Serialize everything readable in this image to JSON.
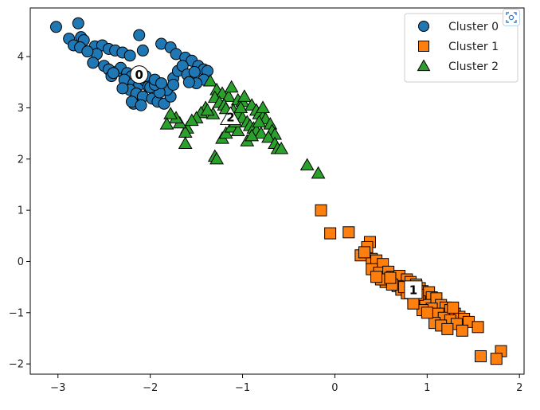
{
  "chart_data": {
    "type": "scatter",
    "xlim": [
      -3.3,
      2.05
    ],
    "ylim": [
      -2.2,
      4.95
    ],
    "xticks": [
      -3,
      -2,
      -1,
      0,
      1,
      2
    ],
    "yticks": [
      -2,
      -1,
      0,
      1,
      2,
      3,
      4
    ],
    "xtick_labels": [
      "−3",
      "−2",
      "−1",
      "0",
      "1",
      "2"
    ],
    "ytick_labels": [
      "−2",
      "−1",
      "0",
      "1",
      "2",
      "3",
      "4"
    ],
    "grid": false,
    "legend_placement": "top-right",
    "series": [
      {
        "name": "Cluster 0",
        "marker": "circle",
        "color": "#1f77b4",
        "points": [
          [
            -3.02,
            4.58
          ],
          [
            -2.78,
            4.65
          ],
          [
            -2.88,
            4.35
          ],
          [
            -2.75,
            4.38
          ],
          [
            -2.72,
            4.32
          ],
          [
            -2.83,
            4.22
          ],
          [
            -2.76,
            4.18
          ],
          [
            -2.6,
            4.2
          ],
          [
            -2.52,
            4.22
          ],
          [
            -2.45,
            4.15
          ],
          [
            -2.38,
            4.12
          ],
          [
            -2.3,
            4.08
          ],
          [
            -2.22,
            4.02
          ],
          [
            -2.12,
            4.42
          ],
          [
            -2.08,
            4.12
          ],
          [
            -1.88,
            4.25
          ],
          [
            -1.78,
            4.18
          ],
          [
            -1.72,
            4.05
          ],
          [
            -1.62,
            3.98
          ],
          [
            -1.55,
            3.92
          ],
          [
            -1.48,
            3.82
          ],
          [
            -1.42,
            3.75
          ],
          [
            -1.38,
            3.72
          ],
          [
            -2.58,
            4.05
          ],
          [
            -2.62,
            3.88
          ],
          [
            -2.5,
            3.82
          ],
          [
            -2.45,
            3.75
          ],
          [
            -2.35,
            3.72
          ],
          [
            -2.32,
            3.78
          ],
          [
            -2.25,
            3.68
          ],
          [
            -2.2,
            3.62
          ],
          [
            -2.15,
            3.55
          ],
          [
            -2.28,
            3.55
          ],
          [
            -2.18,
            3.48
          ],
          [
            -2.12,
            3.45
          ],
          [
            -2.05,
            3.52
          ],
          [
            -2.02,
            3.42
          ],
          [
            -2.22,
            3.35
          ],
          [
            -2.15,
            3.28
          ],
          [
            -2.08,
            3.22
          ],
          [
            -1.98,
            3.18
          ],
          [
            -1.92,
            3.12
          ],
          [
            -1.85,
            3.08
          ],
          [
            -1.78,
            3.22
          ],
          [
            -1.82,
            3.35
          ],
          [
            -1.9,
            3.3
          ],
          [
            -2.3,
            3.38
          ],
          [
            -2.42,
            3.62
          ],
          [
            -2.4,
            3.68
          ],
          [
            -2.0,
            3.4
          ],
          [
            -1.95,
            3.45
          ],
          [
            -2.18,
            3.08
          ],
          [
            -2.2,
            3.12
          ],
          [
            -2.1,
            3.05
          ],
          [
            -1.75,
            3.58
          ],
          [
            -1.7,
            3.72
          ],
          [
            -1.65,
            3.82
          ],
          [
            -1.6,
            3.65
          ],
          [
            -1.52,
            3.7
          ],
          [
            -1.42,
            3.55
          ],
          [
            -1.5,
            3.48
          ],
          [
            -1.58,
            3.5
          ],
          [
            -1.75,
            3.45
          ],
          [
            -2.68,
            4.1
          ],
          [
            -2.05,
            3.62
          ],
          [
            -1.95,
            3.55
          ],
          [
            -1.88,
            3.48
          ]
        ]
      },
      {
        "name": "Cluster 1",
        "marker": "square",
        "color": "#ff7f0e",
        "points": [
          [
            -0.15,
            1.0
          ],
          [
            -0.05,
            0.55
          ],
          [
            0.15,
            0.57
          ],
          [
            0.38,
            0.38
          ],
          [
            0.35,
            0.28
          ],
          [
            0.28,
            0.12
          ],
          [
            0.4,
            0.05
          ],
          [
            0.32,
            0.18
          ],
          [
            0.45,
            0.02
          ],
          [
            0.52,
            -0.05
          ],
          [
            0.4,
            -0.15
          ],
          [
            0.48,
            -0.22
          ],
          [
            0.58,
            -0.2
          ],
          [
            0.62,
            -0.3
          ],
          [
            0.7,
            -0.28
          ],
          [
            0.78,
            -0.35
          ],
          [
            0.82,
            -0.4
          ],
          [
            0.88,
            -0.45
          ],
          [
            0.92,
            -0.52
          ],
          [
            0.95,
            -0.58
          ],
          [
            1.02,
            -0.6
          ],
          [
            1.05,
            -0.7
          ],
          [
            1.1,
            -0.72
          ],
          [
            1.15,
            -0.85
          ],
          [
            1.2,
            -0.9
          ],
          [
            1.25,
            -0.95
          ],
          [
            1.3,
            -1.02
          ],
          [
            1.35,
            -1.08
          ],
          [
            1.4,
            -1.12
          ],
          [
            1.45,
            -1.18
          ],
          [
            1.55,
            -1.28
          ],
          [
            0.68,
            -0.48
          ],
          [
            0.72,
            -0.55
          ],
          [
            0.78,
            -0.62
          ],
          [
            0.85,
            -0.7
          ],
          [
            0.92,
            -0.78
          ],
          [
            0.98,
            -0.85
          ],
          [
            1.05,
            -0.92
          ],
          [
            1.12,
            -1.02
          ],
          [
            1.18,
            -1.1
          ],
          [
            1.25,
            -1.15
          ],
          [
            1.32,
            -1.22
          ],
          [
            1.38,
            -1.35
          ],
          [
            0.55,
            -0.4
          ],
          [
            0.62,
            -0.45
          ],
          [
            0.5,
            -0.35
          ],
          [
            0.45,
            -0.3
          ],
          [
            1.08,
            -1.2
          ],
          [
            1.15,
            -1.25
          ],
          [
            1.22,
            -1.32
          ],
          [
            0.9,
            -0.65
          ],
          [
            0.95,
            -0.95
          ],
          [
            1.0,
            -1.0
          ],
          [
            1.58,
            -1.85
          ],
          [
            1.8,
            -1.75
          ],
          [
            1.75,
            -1.9
          ],
          [
            0.75,
            -0.5
          ],
          [
            0.6,
            -0.32
          ],
          [
            1.28,
            -0.9
          ],
          [
            0.85,
            -0.82
          ]
        ]
      },
      {
        "name": "Cluster 2",
        "marker": "triangle",
        "color": "#2ca02c",
        "points": [
          [
            -1.35,
            3.52
          ],
          [
            -1.28,
            3.35
          ],
          [
            -1.22,
            3.28
          ],
          [
            -1.15,
            3.22
          ],
          [
            -1.12,
            3.4
          ],
          [
            -1.05,
            3.15
          ],
          [
            -1.0,
            3.12
          ],
          [
            -0.98,
            3.22
          ],
          [
            -0.9,
            3.05
          ],
          [
            -0.85,
            2.95
          ],
          [
            -0.82,
            2.88
          ],
          [
            -0.78,
            2.82
          ],
          [
            -0.75,
            2.78
          ],
          [
            -0.7,
            2.68
          ],
          [
            -0.68,
            2.55
          ],
          [
            -0.65,
            2.48
          ],
          [
            -1.3,
            3.2
          ],
          [
            -1.25,
            3.1
          ],
          [
            -1.2,
            3.05
          ],
          [
            -1.18,
            2.98
          ],
          [
            -1.1,
            2.95
          ],
          [
            -1.05,
            2.88
          ],
          [
            -1.0,
            2.8
          ],
          [
            -0.95,
            2.72
          ],
          [
            -0.92,
            2.65
          ],
          [
            -0.88,
            2.6
          ],
          [
            -0.85,
            2.55
          ],
          [
            -0.8,
            2.5
          ],
          [
            -0.72,
            2.42
          ],
          [
            -0.65,
            2.3
          ],
          [
            -0.62,
            2.2
          ],
          [
            -0.58,
            2.2
          ],
          [
            -1.4,
            3.0
          ],
          [
            -1.45,
            2.9
          ],
          [
            -1.5,
            2.8
          ],
          [
            -1.6,
            2.6
          ],
          [
            -1.62,
            2.52
          ],
          [
            -1.68,
            2.7
          ],
          [
            -1.72,
            2.8
          ],
          [
            -1.78,
            2.88
          ],
          [
            -1.82,
            2.68
          ],
          [
            -1.55,
            2.75
          ],
          [
            -1.3,
            2.05
          ],
          [
            -1.28,
            2.0
          ],
          [
            -1.62,
            2.3
          ],
          [
            -1.22,
            2.4
          ],
          [
            -1.18,
            2.5
          ],
          [
            -1.12,
            2.62
          ],
          [
            -1.05,
            2.55
          ],
          [
            -0.95,
            2.35
          ],
          [
            -0.9,
            2.45
          ],
          [
            -0.3,
            1.88
          ],
          [
            -0.18,
            1.72
          ],
          [
            -1.32,
            2.88
          ],
          [
            -1.38,
            2.95
          ],
          [
            -1.02,
            3.0
          ],
          [
            -0.78,
            3.0
          ],
          [
            -0.82,
            2.72
          ],
          [
            -1.08,
            2.72
          ]
        ]
      }
    ],
    "centers": [
      {
        "label": "0",
        "x": -2.12,
        "y": 3.65,
        "marker": "circle"
      },
      {
        "label": "1",
        "x": 0.85,
        "y": -0.55,
        "marker": "square"
      },
      {
        "label": "2",
        "x": -1.13,
        "y": 2.82,
        "marker": "triangle"
      }
    ]
  }
}
